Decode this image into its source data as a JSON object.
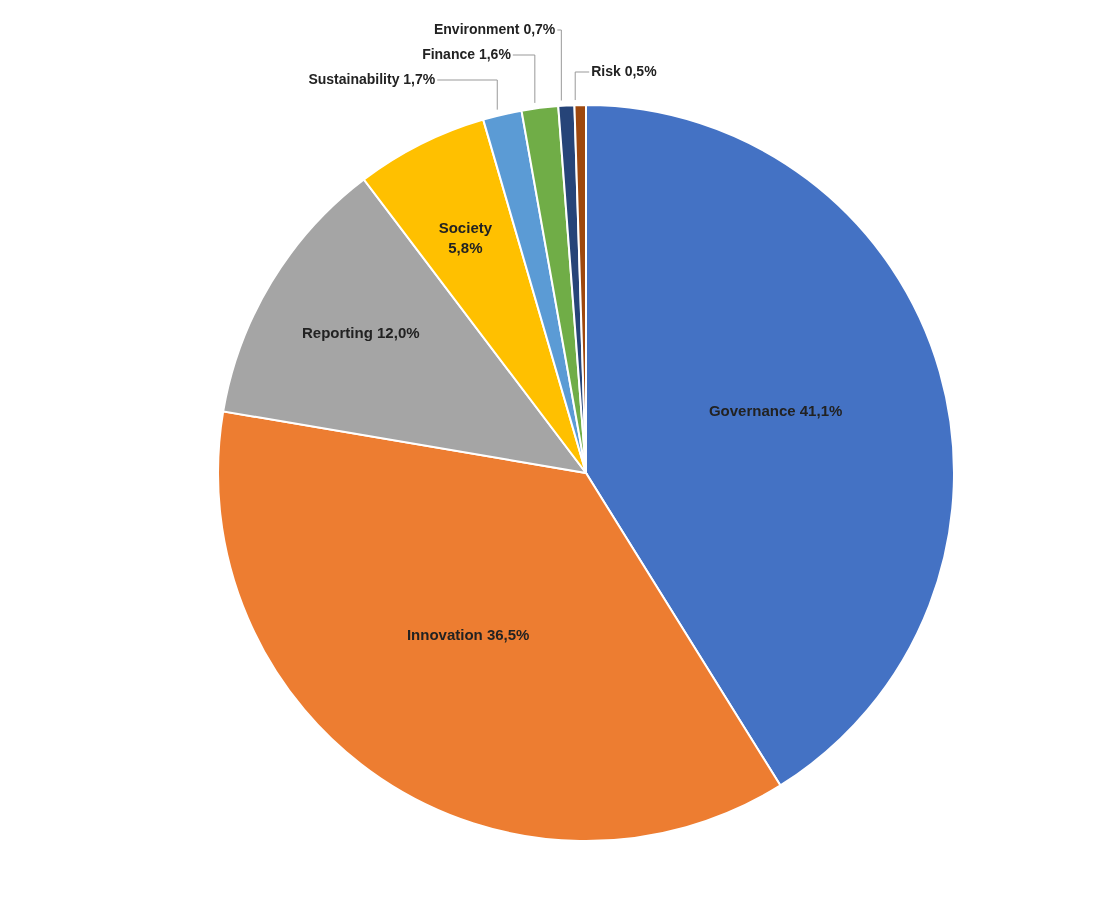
{
  "chart_data": {
    "type": "pie",
    "categories": [
      "Governance",
      "Innovation",
      "Reporting",
      "Society",
      "Sustainability",
      "Finance",
      "Environment",
      "Risk"
    ],
    "values": [
      41.1,
      36.5,
      12.0,
      5.8,
      1.7,
      1.6,
      0.7,
      0.5
    ],
    "value_labels": [
      "41,1%",
      "36,5%",
      "12,0%",
      "5,8%",
      "1,7%",
      "1,6%",
      "0,7%",
      "0,5%"
    ],
    "colors": [
      "#4472c4",
      "#ed7d31",
      "#a5a5a5",
      "#ffc000",
      "#5b9bd5",
      "#70ad47",
      "#264478",
      "#9e480e"
    ],
    "legend": false
  }
}
